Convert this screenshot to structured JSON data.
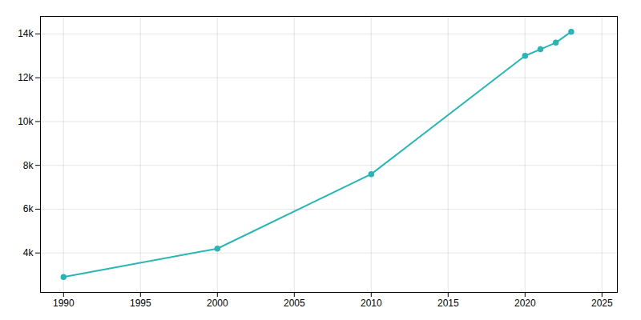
{
  "chart_data": {
    "type": "line",
    "x": [
      1990,
      2000,
      2010,
      2020,
      2021,
      2022,
      2023
    ],
    "values": [
      2900,
      4200,
      7600,
      13000,
      13300,
      13600,
      14100
    ],
    "color": "#2ab5b5",
    "marker": "o",
    "xlim": [
      1988.5,
      2026
    ],
    "ylim": [
      2200,
      14800
    ],
    "xticks": [
      1990,
      1995,
      2000,
      2005,
      2010,
      2015,
      2020,
      2025
    ],
    "yticks": [
      {
        "value": 4000,
        "label": "4k"
      },
      {
        "value": 6000,
        "label": "6k"
      },
      {
        "value": 8000,
        "label": "8k"
      },
      {
        "value": 10000,
        "label": "10k"
      },
      {
        "value": 12000,
        "label": "12k"
      },
      {
        "value": 14000,
        "label": "14k"
      }
    ],
    "grid": true
  }
}
